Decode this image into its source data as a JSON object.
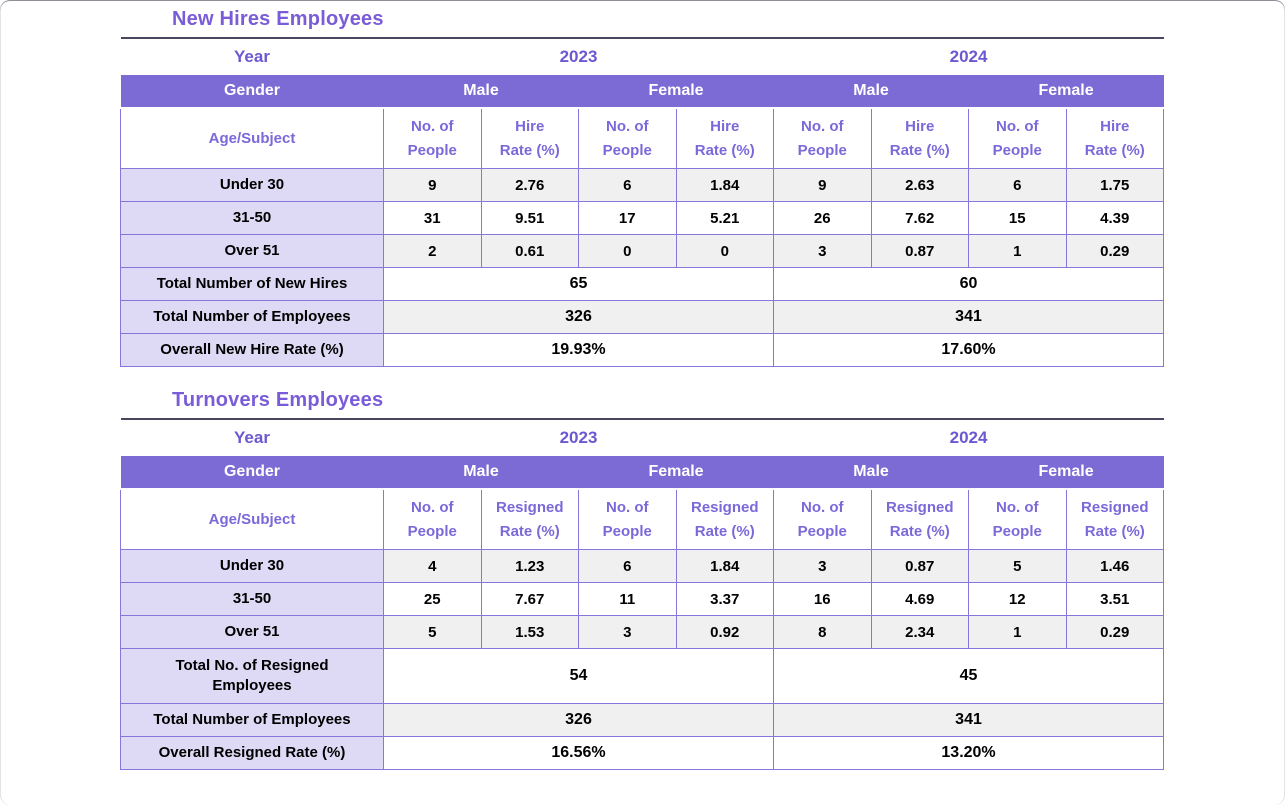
{
  "colors": {
    "accent_band": "#7C6BD4",
    "light_cell": "#DED9F4",
    "border": "#8577DB",
    "title_text": "#7A5CD8",
    "year_text": "#6C58D0",
    "column_header_text": "#7B68D9",
    "row_label_text": "#4730C8",
    "shaded_row": "#F0F0F0",
    "top_rule": "#4C4560"
  },
  "tables": [
    {
      "title": "New Hires Employees",
      "year_label": "Year",
      "years": [
        "2023",
        "2024"
      ],
      "gender_label": "Gender",
      "genders": [
        "Male",
        "Female",
        "Male",
        "Female"
      ],
      "age_label": "Age/Subject",
      "col_headers": [
        "No. of\nPeople",
        "Hire\nRate (%)",
        "No. of\nPeople",
        "Hire\nRate (%)",
        "No. of\nPeople",
        "Hire\nRate (%)",
        "No. of\nPeople",
        "Hire\nRate (%)"
      ],
      "rows": [
        {
          "label": "Under 30",
          "values": [
            "9",
            "2.76",
            "6",
            "1.84",
            "9",
            "2.63",
            "6",
            "1.75"
          ]
        },
        {
          "label": "31-50",
          "values": [
            "31",
            "9.51",
            "17",
            "5.21",
            "26",
            "7.62",
            "15",
            "4.39"
          ]
        },
        {
          "label": "Over 51",
          "values": [
            "2",
            "0.61",
            "0",
            "0",
            "3",
            "0.87",
            "1",
            "0.29"
          ]
        }
      ],
      "summary": [
        {
          "label": "Total Number of New Hires",
          "values": [
            "65",
            "60"
          ]
        },
        {
          "label": "Total Number of Employees",
          "values": [
            "326",
            "341"
          ]
        },
        {
          "label": "Overall New Hire Rate (%)",
          "values": [
            "19.93%",
            "17.60%"
          ]
        }
      ]
    },
    {
      "title": "Turnovers Employees",
      "year_label": "Year",
      "years": [
        "2023",
        "2024"
      ],
      "gender_label": "Gender",
      "genders": [
        "Male",
        "Female",
        "Male",
        "Female"
      ],
      "age_label": "Age/Subject",
      "col_headers": [
        "No. of\nPeople",
        "Resigned\nRate (%)",
        "No. of\nPeople",
        "Resigned\nRate (%)",
        "No. of\nPeople",
        "Resigned\nRate (%)",
        "No. of\nPeople",
        "Resigned\nRate (%)"
      ],
      "rows": [
        {
          "label": "Under 30",
          "values": [
            "4",
            "1.23",
            "6",
            "1.84",
            "3",
            "0.87",
            "5",
            "1.46"
          ]
        },
        {
          "label": "31-50",
          "values": [
            "25",
            "7.67",
            "11",
            "3.37",
            "16",
            "4.69",
            "12",
            "3.51"
          ]
        },
        {
          "label": "Over 51",
          "values": [
            "5",
            "1.53",
            "3",
            "0.92",
            "8",
            "2.34",
            "1",
            "0.29"
          ]
        }
      ],
      "summary": [
        {
          "label": "Total No. of Resigned\nEmployees",
          "values": [
            "54",
            "45"
          ]
        },
        {
          "label": "Total Number of Employees",
          "values": [
            "326",
            "341"
          ]
        },
        {
          "label": "Overall Resigned Rate (%)",
          "values": [
            "16.56%",
            "13.20%"
          ]
        }
      ]
    }
  ]
}
